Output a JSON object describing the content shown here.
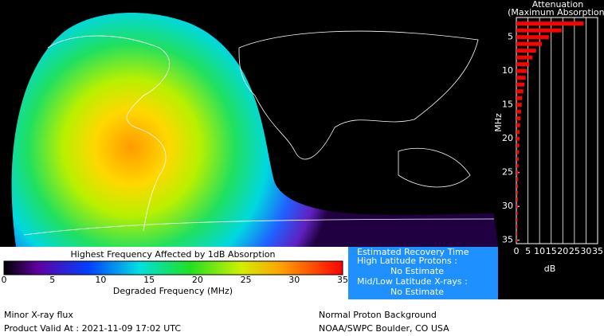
{
  "chart_data": {
    "type": "bar",
    "orientation": "horizontal",
    "title": "Attenuation",
    "subtitle": "(Maximum Absorption)",
    "y_label": "MHz",
    "x_label": "dB",
    "color": "#ff0000",
    "grid": true,
    "y": [
      3,
      4,
      5,
      6,
      7,
      8,
      9,
      10,
      11,
      12,
      13,
      14,
      15,
      16,
      17,
      18,
      19,
      20,
      21,
      22,
      23,
      24,
      25,
      26,
      27,
      28,
      29,
      30,
      31,
      32,
      33,
      34,
      35
    ],
    "values": [
      29,
      19.5,
      14,
      11,
      8.5,
      7,
      5.5,
      4.5,
      4,
      3.5,
      3,
      2.5,
      2.3,
      2,
      1.8,
      1.6,
      1.4,
      1.3,
      1.2,
      1.1,
      1,
      0.9,
      0.85,
      0.8,
      0.75,
      0.7,
      0.65,
      0.6,
      0.55,
      0.5,
      0.48,
      0.45,
      0.42
    ],
    "ylim": [
      2.1,
      35.5
    ],
    "yticks": [
      5,
      10,
      15,
      20,
      25,
      30,
      35
    ],
    "xlim": [
      0,
      35
    ],
    "xticks": [
      0,
      5,
      10,
      15,
      20,
      25,
      30,
      35
    ]
  },
  "colorbar": {
    "title": "Highest Frequency Affected by 1dB Absorption",
    "label": "Degraded Frequency (MHz)",
    "ticks": [
      0,
      5,
      10,
      15,
      20,
      25,
      30,
      35
    ]
  },
  "recovery": {
    "title": "Estimated Recovery Time",
    "high_label": "High Latitude Protons :",
    "high_value": "No Estimate",
    "low_label": "Mid/Low Latitude X-rays :",
    "low_value": "No Estimate"
  },
  "footer": {
    "xray": "Minor X-ray flux",
    "valid": "Product Valid At : 2021-11-09 17:02 UTC",
    "proton": "Normal Proton Background",
    "source": "NOAA/SWPC Boulder, CO USA"
  }
}
